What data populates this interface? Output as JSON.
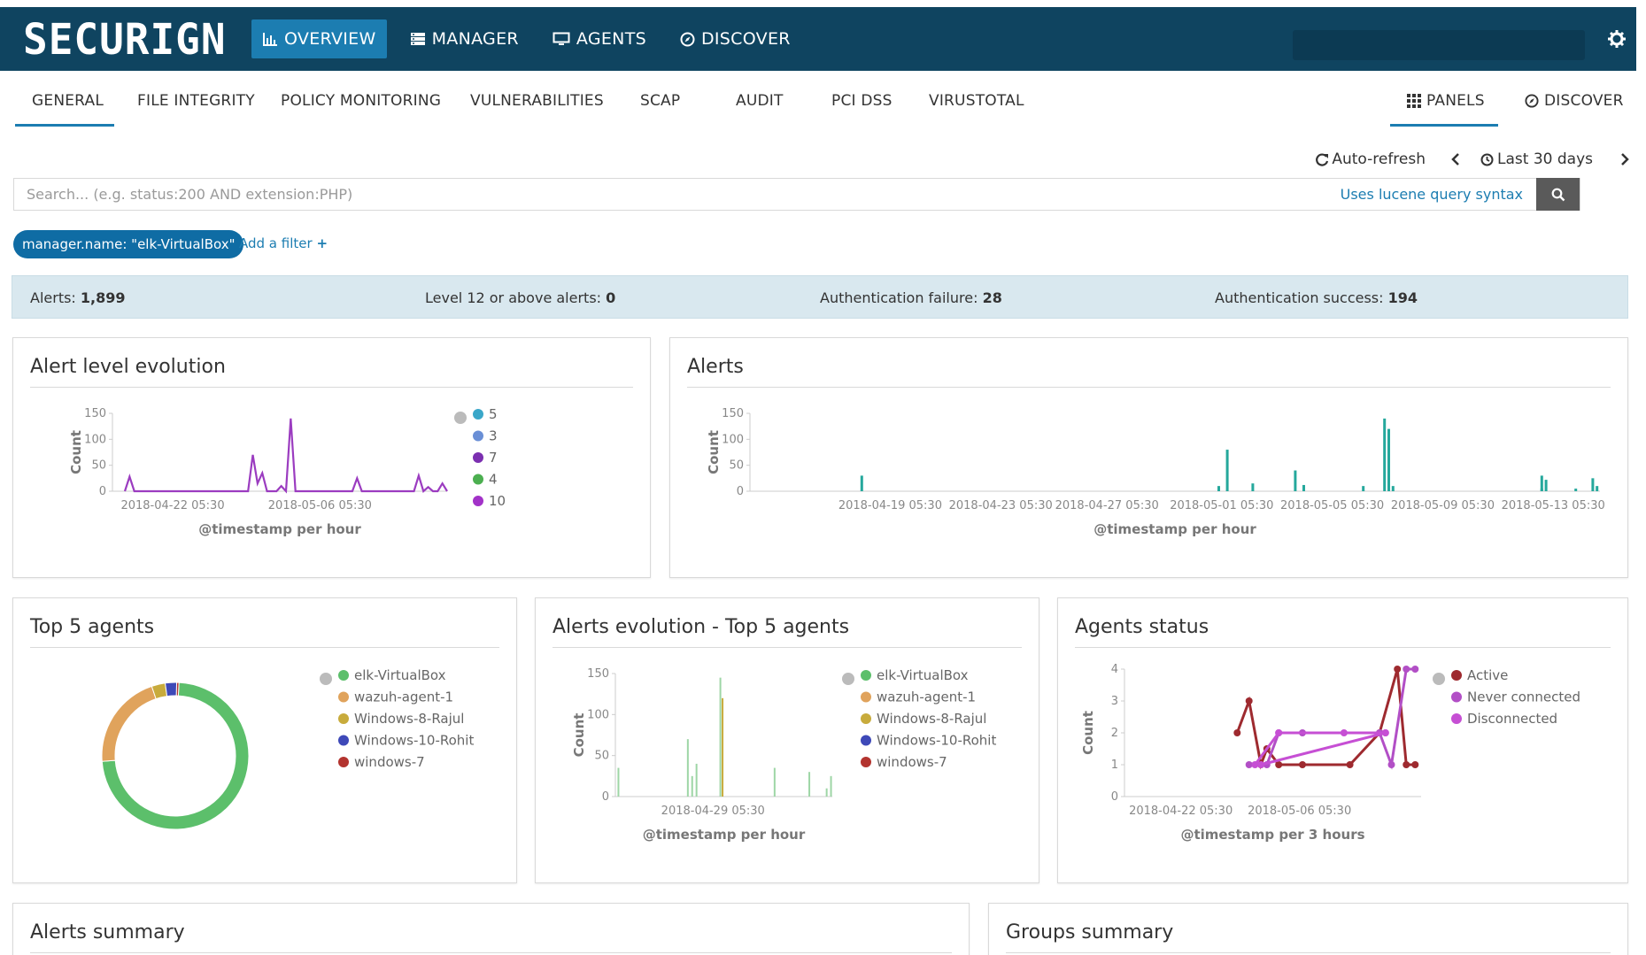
{
  "app": {
    "logo": "SECURIGN",
    "nav": [
      {
        "label": "OVERVIEW",
        "active": true
      },
      {
        "label": "MANAGER",
        "active": false
      },
      {
        "label": "AGENTS",
        "active": false
      },
      {
        "label": "DISCOVER",
        "active": false
      }
    ]
  },
  "tabs": {
    "left": [
      "GENERAL",
      "FILE INTEGRITY",
      "POLICY MONITORING",
      "VULNERABILITIES",
      "SCAP",
      "AUDIT",
      "PCI DSS",
      "VIRUSTOTAL"
    ],
    "active": "GENERAL",
    "right": {
      "panels": "PANELS",
      "discover": "DISCOVER"
    }
  },
  "time": {
    "auto_refresh": "Auto-refresh",
    "range": "Last 30 days"
  },
  "search": {
    "placeholder": "Search... (e.g. status:200 AND extension:PHP)",
    "hint": "Uses lucene query syntax"
  },
  "filters": {
    "pill": "manager.name: \"elk-VirtualBox\"",
    "add": "Add a filter"
  },
  "stats": [
    {
      "label": "Alerts:",
      "value": "1,899"
    },
    {
      "label": "Level 12 or above alerts:",
      "value": "0"
    },
    {
      "label": "Authentication failure:",
      "value": "28"
    },
    {
      "label": "Authentication success:",
      "value": "194"
    }
  ],
  "panels": {
    "alert_level": {
      "title": "Alert level evolution"
    },
    "alerts": {
      "title": "Alerts"
    },
    "top5": {
      "title": "Top 5 agents"
    },
    "evolution": {
      "title": "Alerts evolution - Top 5 agents"
    },
    "status": {
      "title": "Agents status"
    },
    "summary": {
      "title": "Alerts summary"
    },
    "groups": {
      "title": "Groups summary"
    }
  },
  "colors": {
    "accent": "#1c7db1",
    "nav_bg": "#0f4460",
    "stats_bg": "#d9e8ef"
  },
  "chart_data": [
    {
      "type": "line",
      "title": "Alert level evolution",
      "xlabel": "@timestamp per hour",
      "ylabel": "Count",
      "ylim": [
        0,
        150
      ],
      "yticks": [
        0,
        50,
        100,
        150
      ],
      "xticks": [
        "2018-04-22 05:30",
        "2018-05-06 05:30"
      ],
      "legend": [
        {
          "name": "5",
          "color": "#3aa7c9"
        },
        {
          "name": "3",
          "color": "#6a8fd6"
        },
        {
          "name": "7",
          "color": "#7b2fb0"
        },
        {
          "name": "4",
          "color": "#4caf50"
        },
        {
          "name": "10",
          "color": "#a232c8"
        }
      ],
      "series_values": [
        0,
        28,
        0,
        0,
        0,
        0,
        0,
        0,
        0,
        0,
        0,
        0,
        0,
        0,
        0,
        0,
        0,
        0,
        0,
        0,
        0,
        0,
        0,
        0,
        0,
        0,
        0,
        70,
        15,
        35,
        0,
        0,
        0,
        10,
        0,
        140,
        0,
        0,
        0,
        0,
        0,
        0,
        0,
        0,
        0,
        0,
        0,
        0,
        0,
        25,
        0,
        0,
        0,
        0,
        0,
        0,
        0,
        0,
        0,
        0,
        0,
        0,
        30,
        0,
        8,
        0,
        0,
        15,
        0
      ]
    },
    {
      "type": "bar",
      "title": "Alerts",
      "xlabel": "@timestamp per hour",
      "ylabel": "Count",
      "ylim": [
        0,
        150
      ],
      "yticks": [
        0,
        50,
        100,
        150
      ],
      "xticks": [
        "2018-04-19 05:30",
        "2018-04-23 05:30",
        "2018-04-27 05:30",
        "2018-05-01 05:30",
        "2018-05-05 05:30",
        "2018-05-09 05:30",
        "2018-05-13 05:30"
      ],
      "bars": [
        [
          0.13,
          30
        ],
        [
          0.55,
          10
        ],
        [
          0.56,
          80
        ],
        [
          0.59,
          15
        ],
        [
          0.64,
          40
        ],
        [
          0.65,
          12
        ],
        [
          0.72,
          10
        ],
        [
          0.745,
          140
        ],
        [
          0.75,
          120
        ],
        [
          0.755,
          10
        ],
        [
          0.93,
          30
        ],
        [
          0.93,
          5
        ],
        [
          0.935,
          22
        ],
        [
          0.97,
          5
        ],
        [
          0.99,
          25
        ],
        [
          0.995,
          10
        ]
      ]
    },
    {
      "type": "pie",
      "title": "Top 5 agents",
      "legend": [
        {
          "name": "elk-VirtualBox",
          "color": "#5cbf6b"
        },
        {
          "name": "wazuh-agent-1",
          "color": "#e0a35c"
        },
        {
          "name": "Windows-8-Rajul",
          "color": "#c8ab3c"
        },
        {
          "name": "Windows-10-Rohit",
          "color": "#3e49b8"
        },
        {
          "name": "windows-7",
          "color": "#b3342f"
        }
      ],
      "values": [
        73,
        21,
        3,
        2.5,
        0.5
      ]
    },
    {
      "type": "bar",
      "title": "Alerts evolution - Top 5 agents",
      "xlabel": "@timestamp per hour",
      "ylabel": "Count",
      "ylim": [
        0,
        150
      ],
      "yticks": [
        0,
        50,
        100,
        150
      ],
      "xticks": [
        "2018-04-29 05:30"
      ],
      "legend": [
        {
          "name": "elk-VirtualBox",
          "color": "#5cbf6b"
        },
        {
          "name": "wazuh-agent-1",
          "color": "#e0a35c"
        },
        {
          "name": "Windows-8-Rajul",
          "color": "#c8ab3c"
        },
        {
          "name": "Windows-10-Rohit",
          "color": "#3e49b8"
        },
        {
          "name": "windows-7",
          "color": "#b3342f"
        }
      ],
      "bars": [
        [
          0.01,
          35
        ],
        [
          0.33,
          70
        ],
        [
          0.35,
          25
        ],
        [
          0.37,
          40
        ],
        [
          0.48,
          145
        ],
        [
          0.49,
          120
        ],
        [
          0.73,
          35
        ],
        [
          0.89,
          30
        ],
        [
          0.97,
          10
        ],
        [
          0.99,
          25
        ]
      ]
    },
    {
      "type": "line",
      "title": "Agents status",
      "xlabel": "@timestamp per 3 hours",
      "ylabel": "Count",
      "ylim": [
        0,
        4
      ],
      "yticks": [
        0,
        1,
        2,
        3,
        4
      ],
      "xticks": [
        "2018-04-22 05:30",
        "2018-05-06 05:30"
      ],
      "legend": [
        {
          "name": "Active",
          "color": "#9e2a2f"
        },
        {
          "name": "Never connected",
          "color": "#b24fc6"
        },
        {
          "name": "Disconnected",
          "color": "#c64fd4"
        }
      ],
      "series": [
        {
          "name": "Active",
          "points": [
            [
              0.38,
              2
            ],
            [
              0.42,
              3
            ],
            [
              0.46,
              1
            ],
            [
              0.48,
              1.5
            ],
            [
              0.52,
              1
            ],
            [
              0.6,
              1
            ],
            [
              0.76,
              1
            ],
            [
              0.86,
              2
            ],
            [
              0.92,
              4
            ],
            [
              0.95,
              1
            ],
            [
              0.98,
              1
            ]
          ]
        },
        {
          "name": "Never connected",
          "points": [
            [
              0.42,
              1
            ],
            [
              0.48,
              1
            ],
            [
              0.52,
              2
            ],
            [
              0.6,
              2
            ],
            [
              0.86,
              2
            ],
            [
              0.9,
              1
            ],
            [
              0.95,
              4
            ],
            [
              0.98,
              4
            ]
          ]
        },
        {
          "name": "Disconnected",
          "points": [
            [
              0.44,
              1
            ],
            [
              0.52,
              2
            ],
            [
              0.74,
              2
            ],
            [
              0.88,
              2
            ],
            [
              0.46,
              1
            ],
            [
              0.88,
              2
            ]
          ]
        }
      ]
    }
  ]
}
